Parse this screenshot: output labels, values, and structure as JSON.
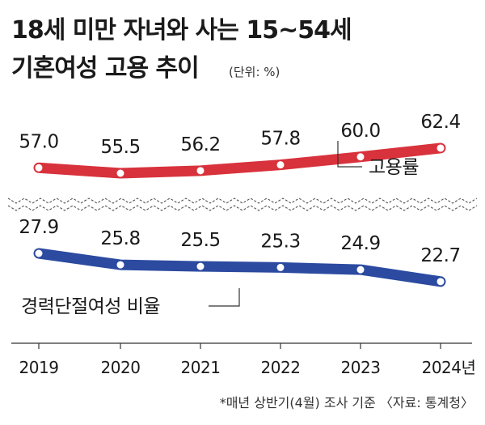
{
  "title_line1": "18세 미만 자녀와 사는 15~54세",
  "title_line2": "기혼여성 고용 추이",
  "unit": "(단위: %)",
  "note": "*매년 상반기(4월) 조사 기준 〈자료: 통계청〉",
  "colors": {
    "employment": "#d8323c",
    "career_break": "#2b4aa0"
  },
  "chart_data": {
    "type": "line",
    "x": [
      "2019",
      "2020",
      "2021",
      "2022",
      "2023",
      "2024년"
    ],
    "series": [
      {
        "name": "고용률",
        "values": [
          57.0,
          55.5,
          56.2,
          57.8,
          60.0,
          62.4
        ],
        "labels": [
          "57.0",
          "55.5",
          "56.2",
          "57.8",
          "60.0",
          "62.4"
        ]
      },
      {
        "name": "경력단절여성 비율",
        "values": [
          27.9,
          25.8,
          25.5,
          25.3,
          24.9,
          22.7
        ],
        "labels": [
          "27.9",
          "25.8",
          "25.5",
          "25.3",
          "24.9",
          "22.7"
        ]
      }
    ],
    "axis_break": true,
    "grid": false,
    "legend": "inline labels"
  }
}
